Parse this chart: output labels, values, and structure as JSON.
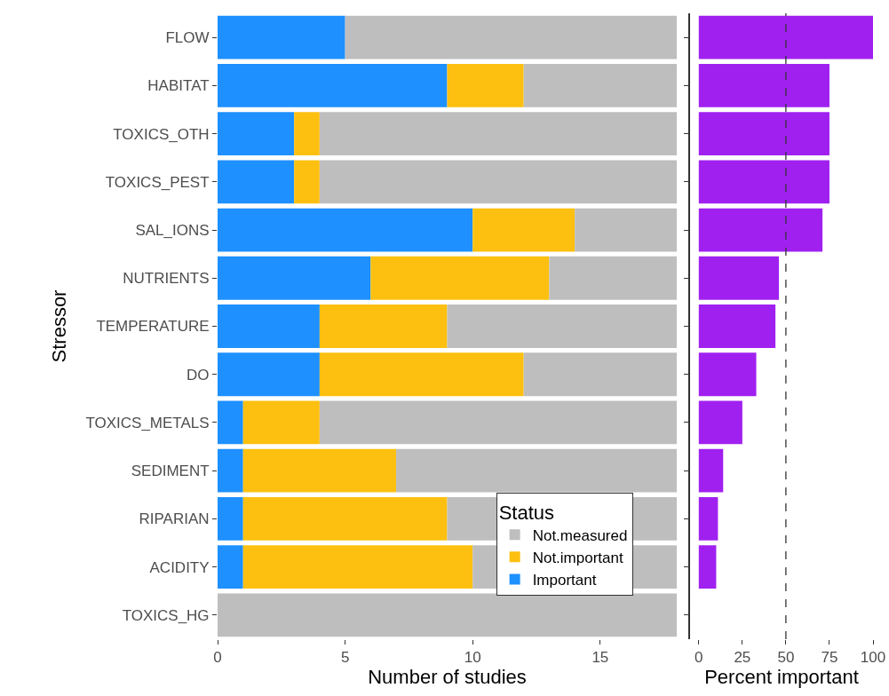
{
  "chart_data": [
    {
      "type": "bar",
      "orientation": "horizontal",
      "stacked": true,
      "ylabel": "Stressor",
      "xlabel": "Number of studies",
      "legend_title": "Status",
      "legend": "bottom right",
      "categories": [
        "FLOW",
        "HABITAT",
        "TOXICS_OTH",
        "TOXICS_PEST",
        "SAL_IONS",
        "NUTRIENTS",
        "TEMPERATURE",
        "DO",
        "TOXICS_METALS",
        "SEDIMENT",
        "RIPARIAN",
        "ACIDITY",
        "TOXICS_HG"
      ],
      "series": [
        {
          "name": "Important",
          "color": "#1e90ff",
          "values": [
            5,
            9,
            3,
            3,
            10,
            6,
            4,
            4,
            1,
            1,
            1,
            1,
            0
          ]
        },
        {
          "name": "Not.important",
          "color": "#fdc010",
          "values": [
            0,
            3,
            1,
            1,
            4,
            7,
            5,
            8,
            3,
            6,
            8,
            9,
            0
          ]
        },
        {
          "name": "Not.measured",
          "color": "#bebebe",
          "values": [
            13,
            6,
            14,
            14,
            4,
            5,
            9,
            6,
            14,
            11,
            9,
            8,
            18
          ]
        }
      ],
      "xlim": [
        0,
        18
      ],
      "xticks": [
        0,
        5,
        10,
        15
      ]
    },
    {
      "type": "bar",
      "orientation": "horizontal",
      "xlabel": "Percent important",
      "tick_labels": "x",
      "categories": [
        "FLOW",
        "HABITAT",
        "TOXICS_OTH",
        "TOXICS_PEST",
        "SAL_IONS",
        "NUTRIENTS",
        "TEMPERATURE",
        "DO",
        "TOXICS_METALS",
        "SEDIMENT",
        "RIPARIAN",
        "ACIDITY",
        "TOXICS_HG"
      ],
      "values": [
        100,
        75,
        75,
        75,
        71,
        46,
        44,
        33,
        25,
        14,
        11,
        10,
        null
      ],
      "color": "#a020f0",
      "xlim": [
        -5,
        100
      ],
      "xticks": [
        0,
        25,
        50,
        75,
        100
      ],
      "ref_lines": [
        {
          "axis": "x",
          "value": 50,
          "line_style": "dashed"
        }
      ]
    }
  ]
}
